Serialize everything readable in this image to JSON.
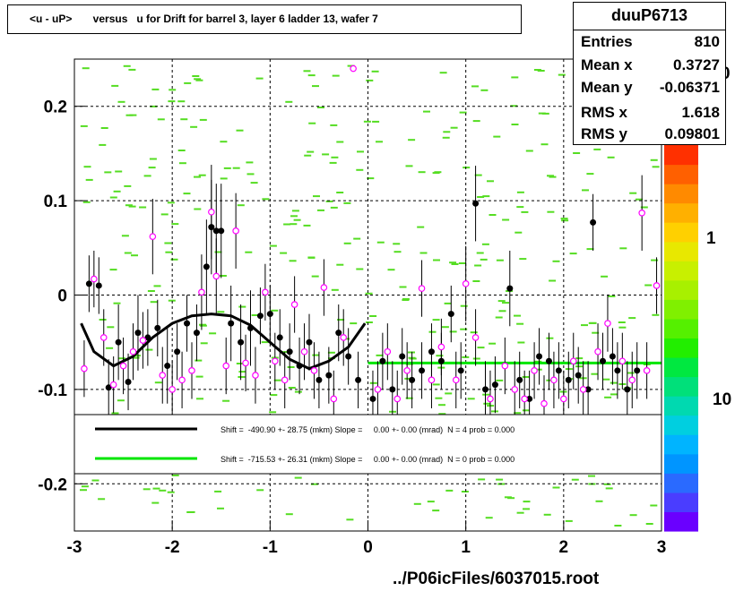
{
  "title": "<u - uP>       versus   u for Drift for barrel 3, layer 6 ladder 13, wafer 7",
  "stats": {
    "name": "duuP6713",
    "rows": [
      {
        "label": "Entries",
        "value": "810"
      },
      {
        "label": "Mean x",
        "value": "0.3727"
      },
      {
        "label": "Mean y",
        "value": "-0.06371"
      },
      {
        "label": "RMS x",
        "value": "1.618"
      },
      {
        "label": "RMS y",
        "value": "0.09801"
      }
    ]
  },
  "footer": "../P06icFiles/6037015.root",
  "colors": {
    "fit1": "#000000",
    "fit2": "#00e600",
    "open_marker": "#ff00ff",
    "scatter": "#55dd22",
    "grid": "#000000"
  },
  "chart_data": {
    "type": "scatter",
    "xlim": [
      -3,
      3
    ],
    "ylim": [
      -0.25,
      0.25
    ],
    "x_ticks": [
      "-3",
      "-2",
      "-1",
      "0",
      "1",
      "2",
      "3"
    ],
    "y_ticks": [
      "-0.2",
      "-0.1",
      "0",
      "0.1",
      "0.2"
    ],
    "y_tick_values": [
      -0.2,
      -0.1,
      0,
      0.1,
      0.2
    ],
    "grid": true,
    "z_axis": {
      "scale": "log",
      "tick_labels": [
        "1",
        "10"
      ],
      "partial_label": "0"
    },
    "legend": {
      "placement": "bottom-center",
      "entries": [
        {
          "text": "Shift =  -490.90 +- 28.75 (mkm) Slope =     0.00 +- 0.00 (mrad)  N = 4 prob = 0.000",
          "color": "#000000"
        },
        {
          "text": "Shift =  -715.53 +- 26.31 (mkm) Slope =     0.00 +- 0.00 (mrad)  N = 0 prob = 0.000",
          "color": "#00e600"
        }
      ]
    },
    "fit_black": [
      [
        -2.93,
        -0.03
      ],
      [
        -2.8,
        -0.06
      ],
      [
        -2.6,
        -0.075
      ],
      [
        -2.4,
        -0.065
      ],
      [
        -2.2,
        -0.045
      ],
      [
        -2.0,
        -0.03
      ],
      [
        -1.8,
        -0.022
      ],
      [
        -1.6,
        -0.02
      ],
      [
        -1.4,
        -0.022
      ],
      [
        -1.2,
        -0.032
      ],
      [
        -1.0,
        -0.05
      ],
      [
        -0.8,
        -0.068
      ],
      [
        -0.6,
        -0.078
      ],
      [
        -0.4,
        -0.07
      ],
      [
        -0.2,
        -0.055
      ],
      [
        -0.03,
        -0.03
      ]
    ],
    "fit_green": [
      [
        0.0,
        -0.072
      ],
      [
        3.0,
        -0.072
      ]
    ],
    "profile_black": [
      {
        "x": -2.85,
        "y": 0.012,
        "e": 0.03
      },
      {
        "x": -2.75,
        "y": 0.01,
        "e": 0.03
      },
      {
        "x": -2.65,
        "y": -0.098,
        "e": 0.03
      },
      {
        "x": -2.55,
        "y": -0.05,
        "e": 0.04
      },
      {
        "x": -2.45,
        "y": -0.092,
        "e": 0.03
      },
      {
        "x": -2.35,
        "y": -0.04,
        "e": 0.04
      },
      {
        "x": -2.25,
        "y": -0.045,
        "e": 0.03
      },
      {
        "x": -2.15,
        "y": -0.035,
        "e": 0.03
      },
      {
        "x": -2.05,
        "y": -0.075,
        "e": 0.04
      },
      {
        "x": -1.95,
        "y": -0.06,
        "e": 0.03
      },
      {
        "x": -1.85,
        "y": -0.03,
        "e": 0.03
      },
      {
        "x": -1.75,
        "y": -0.04,
        "e": 0.03
      },
      {
        "x": -1.65,
        "y": 0.03,
        "e": 0.05
      },
      {
        "x": -1.6,
        "y": 0.072,
        "e": 0.05
      },
      {
        "x": -1.55,
        "y": 0.068,
        "e": 0.05
      },
      {
        "x": -1.5,
        "y": 0.068,
        "e": 0.05
      },
      {
        "x": -1.4,
        "y": -0.03,
        "e": 0.04
      },
      {
        "x": -1.3,
        "y": -0.05,
        "e": 0.04
      },
      {
        "x": -1.2,
        "y": -0.035,
        "e": 0.04
      },
      {
        "x": -1.1,
        "y": -0.022,
        "e": 0.03
      },
      {
        "x": -1.0,
        "y": -0.02,
        "e": 0.03
      },
      {
        "x": -0.9,
        "y": -0.045,
        "e": 0.03
      },
      {
        "x": -0.8,
        "y": -0.06,
        "e": 0.03
      },
      {
        "x": -0.7,
        "y": -0.075,
        "e": 0.03
      },
      {
        "x": -0.6,
        "y": -0.05,
        "e": 0.03
      },
      {
        "x": -0.5,
        "y": -0.09,
        "e": 0.03
      },
      {
        "x": -0.4,
        "y": -0.085,
        "e": 0.03
      },
      {
        "x": -0.3,
        "y": -0.04,
        "e": 0.03
      },
      {
        "x": -0.2,
        "y": -0.065,
        "e": 0.03
      },
      {
        "x": -0.1,
        "y": -0.09,
        "e": 0.03
      },
      {
        "x": 0.05,
        "y": -0.11,
        "e": 0.03
      },
      {
        "x": 0.15,
        "y": -0.07,
        "e": 0.03
      },
      {
        "x": 0.25,
        "y": -0.1,
        "e": 0.03
      },
      {
        "x": 0.35,
        "y": -0.065,
        "e": 0.03
      },
      {
        "x": 0.45,
        "y": -0.09,
        "e": 0.03
      },
      {
        "x": 0.55,
        "y": -0.08,
        "e": 0.03
      },
      {
        "x": 0.65,
        "y": -0.06,
        "e": 0.03
      },
      {
        "x": 0.75,
        "y": -0.07,
        "e": 0.03
      },
      {
        "x": 0.85,
        "y": -0.02,
        "e": 0.03
      },
      {
        "x": 0.95,
        "y": -0.08,
        "e": 0.03
      },
      {
        "x": 1.1,
        "y": 0.097,
        "e": 0.04
      },
      {
        "x": 1.2,
        "y": -0.1,
        "e": 0.03
      },
      {
        "x": 1.3,
        "y": -0.095,
        "e": 0.03
      },
      {
        "x": 1.45,
        "y": 0.007,
        "e": 0.04
      },
      {
        "x": 1.55,
        "y": -0.09,
        "e": 0.03
      },
      {
        "x": 1.65,
        "y": -0.11,
        "e": 0.03
      },
      {
        "x": 1.75,
        "y": -0.065,
        "e": 0.03
      },
      {
        "x": 1.85,
        "y": -0.07,
        "e": 0.03
      },
      {
        "x": 1.95,
        "y": -0.08,
        "e": 0.03
      },
      {
        "x": 2.05,
        "y": -0.09,
        "e": 0.03
      },
      {
        "x": 2.15,
        "y": -0.085,
        "e": 0.03
      },
      {
        "x": 2.25,
        "y": -0.1,
        "e": 0.03
      },
      {
        "x": 2.3,
        "y": 0.077,
        "e": 0.03
      },
      {
        "x": 2.4,
        "y": -0.07,
        "e": 0.03
      },
      {
        "x": 2.5,
        "y": -0.065,
        "e": 0.03
      },
      {
        "x": 2.55,
        "y": -0.08,
        "e": 0.03
      },
      {
        "x": 2.65,
        "y": -0.1,
        "e": 0.03
      },
      {
        "x": 2.75,
        "y": -0.08,
        "e": 0.03
      }
    ],
    "profile_open": [
      {
        "x": -2.9,
        "y": -0.078,
        "e": 0.03
      },
      {
        "x": -2.8,
        "y": 0.017,
        "e": 0.03
      },
      {
        "x": -2.7,
        "y": -0.045,
        "e": 0.03
      },
      {
        "x": -2.6,
        "y": -0.095,
        "e": 0.03
      },
      {
        "x": -2.5,
        "y": -0.075,
        "e": 0.03
      },
      {
        "x": -2.4,
        "y": -0.06,
        "e": 0.03
      },
      {
        "x": -2.3,
        "y": -0.048,
        "e": 0.03
      },
      {
        "x": -2.2,
        "y": 0.062,
        "e": 0.04
      },
      {
        "x": -2.1,
        "y": -0.085,
        "e": 0.03
      },
      {
        "x": -2.0,
        "y": -0.1,
        "e": 0.03
      },
      {
        "x": -1.9,
        "y": -0.09,
        "e": 0.03
      },
      {
        "x": -1.8,
        "y": -0.08,
        "e": 0.03
      },
      {
        "x": -1.7,
        "y": 0.003,
        "e": 0.04
      },
      {
        "x": -1.6,
        "y": 0.088,
        "e": 0.05
      },
      {
        "x": -1.55,
        "y": 0.02,
        "e": 0.04
      },
      {
        "x": -1.45,
        "y": -0.075,
        "e": 0.03
      },
      {
        "x": -1.35,
        "y": 0.068,
        "e": 0.04
      },
      {
        "x": -1.25,
        "y": -0.072,
        "e": 0.03
      },
      {
        "x": -1.15,
        "y": -0.085,
        "e": 0.03
      },
      {
        "x": -1.05,
        "y": 0.003,
        "e": 0.03
      },
      {
        "x": -0.95,
        "y": -0.07,
        "e": 0.03
      },
      {
        "x": -0.85,
        "y": -0.09,
        "e": 0.03
      },
      {
        "x": -0.75,
        "y": -0.01,
        "e": 0.03
      },
      {
        "x": -0.65,
        "y": -0.06,
        "e": 0.03
      },
      {
        "x": -0.55,
        "y": -0.08,
        "e": 0.03
      },
      {
        "x": -0.45,
        "y": 0.008,
        "e": 0.03
      },
      {
        "x": -0.35,
        "y": -0.11,
        "e": 0.03
      },
      {
        "x": -0.25,
        "y": -0.045,
        "e": 0.03
      },
      {
        "x": -0.15,
        "y": 0.24,
        "e": 0.0
      },
      {
        "x": 0.1,
        "y": -0.1,
        "e": 0.03
      },
      {
        "x": 0.2,
        "y": -0.06,
        "e": 0.03
      },
      {
        "x": 0.3,
        "y": -0.11,
        "e": 0.03
      },
      {
        "x": 0.4,
        "y": -0.08,
        "e": 0.03
      },
      {
        "x": 0.55,
        "y": 0.007,
        "e": 0.03
      },
      {
        "x": 0.65,
        "y": -0.09,
        "e": 0.03
      },
      {
        "x": 0.75,
        "y": -0.055,
        "e": 0.03
      },
      {
        "x": 0.9,
        "y": -0.09,
        "e": 0.03
      },
      {
        "x": 1.0,
        "y": 0.012,
        "e": 0.04
      },
      {
        "x": 1.1,
        "y": -0.045,
        "e": 0.03
      },
      {
        "x": 1.25,
        "y": -0.11,
        "e": 0.03
      },
      {
        "x": 1.4,
        "y": -0.075,
        "e": 0.03
      },
      {
        "x": 1.5,
        "y": -0.1,
        "e": 0.03
      },
      {
        "x": 1.6,
        "y": -0.11,
        "e": 0.03
      },
      {
        "x": 1.7,
        "y": -0.08,
        "e": 0.03
      },
      {
        "x": 1.8,
        "y": -0.115,
        "e": 0.03
      },
      {
        "x": 1.9,
        "y": -0.09,
        "e": 0.03
      },
      {
        "x": 2.0,
        "y": -0.11,
        "e": 0.03
      },
      {
        "x": 2.1,
        "y": -0.07,
        "e": 0.03
      },
      {
        "x": 2.2,
        "y": -0.1,
        "e": 0.03
      },
      {
        "x": 2.35,
        "y": -0.06,
        "e": 0.03
      },
      {
        "x": 2.45,
        "y": -0.03,
        "e": 0.03
      },
      {
        "x": 2.6,
        "y": -0.07,
        "e": 0.03
      },
      {
        "x": 2.7,
        "y": -0.09,
        "e": 0.03
      },
      {
        "x": 2.8,
        "y": 0.087,
        "e": 0.04
      },
      {
        "x": 2.85,
        "y": -0.08,
        "e": 0.03
      },
      {
        "x": 2.95,
        "y": 0.01,
        "e": 0.03
      }
    ]
  }
}
